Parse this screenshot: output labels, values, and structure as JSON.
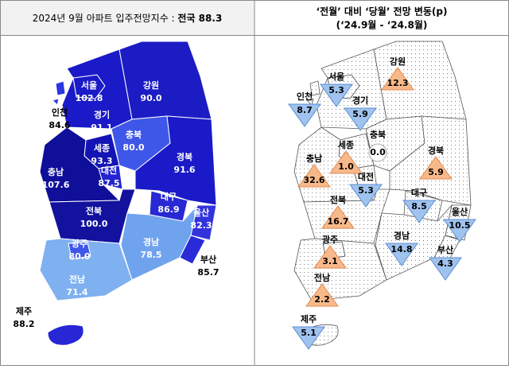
{
  "left_panel": {
    "title": "2024년 9월 아파트 입주전망지수 : ",
    "title_bold": "전국 88.3",
    "regions": [
      {
        "name": "서울",
        "value": "102.8",
        "color": "#1a1ac8"
      },
      {
        "name": "인천",
        "value": "84.6",
        "color": "#2b35e0"
      },
      {
        "name": "경기",
        "value": "91.1",
        "color": "#1a1ac8"
      },
      {
        "name": "강원",
        "value": "90.0",
        "color": "#1c1cc4"
      },
      {
        "name": "충북",
        "value": "80.0",
        "color": "#3f57e8"
      },
      {
        "name": "세종",
        "value": "93.3",
        "color": "#1414b4"
      },
      {
        "name": "충남",
        "value": "107.6",
        "color": "#0f0f9a"
      },
      {
        "name": "대전",
        "value": "87.5",
        "color": "#2424d0"
      },
      {
        "name": "경북",
        "value": "91.6",
        "color": "#1a1ac8"
      },
      {
        "name": "대구",
        "value": "86.9",
        "color": "#2828d4"
      },
      {
        "name": "울산",
        "value": "82.3",
        "color": "#3333dc"
      },
      {
        "name": "전북",
        "value": "100.0",
        "color": "#12129e"
      },
      {
        "name": "경남",
        "value": "78.5",
        "color": "#6fa3ee"
      },
      {
        "name": "부산",
        "value": "85.7",
        "color": "#2a2ad8"
      },
      {
        "name": "광주",
        "value": "80.0",
        "color": "#3f57e8"
      },
      {
        "name": "전남",
        "value": "71.4",
        "color": "#7fb0f0"
      },
      {
        "name": "제주",
        "value": "88.2",
        "color": "#2727d6"
      }
    ]
  },
  "right_panel": {
    "title": "‘전월’ 대비 ‘당월’ 전망 변동(p)",
    "subtitle": "(‘24.9월 - ‘24.8월)",
    "regions": [
      {
        "name": "서울",
        "change": "5.3",
        "trend": "down"
      },
      {
        "name": "인천",
        "change": "8.7",
        "trend": "down"
      },
      {
        "name": "경기",
        "change": "5.9",
        "trend": "down"
      },
      {
        "name": "강원",
        "change": "12.3",
        "trend": "up"
      },
      {
        "name": "충북",
        "change": "0.0",
        "trend": "flat"
      },
      {
        "name": "세종",
        "change": "1.0",
        "trend": "up"
      },
      {
        "name": "충남",
        "change": "32.6",
        "trend": "up"
      },
      {
        "name": "대전",
        "change": "5.3",
        "trend": "down"
      },
      {
        "name": "경북",
        "change": "5.9",
        "trend": "up"
      },
      {
        "name": "대구",
        "change": "8.5",
        "trend": "down"
      },
      {
        "name": "울산",
        "change": "10.5",
        "trend": "down"
      },
      {
        "name": "전북",
        "change": "16.7",
        "trend": "up"
      },
      {
        "name": "경남",
        "change": "14.8",
        "trend": "down"
      },
      {
        "name": "부산",
        "change": "4.3",
        "trend": "down"
      },
      {
        "name": "광주",
        "change": "3.1",
        "trend": "up"
      },
      {
        "name": "전남",
        "change": "2.2",
        "trend": "up"
      },
      {
        "name": "제주",
        "change": "5.1",
        "trend": "down"
      }
    ]
  }
}
